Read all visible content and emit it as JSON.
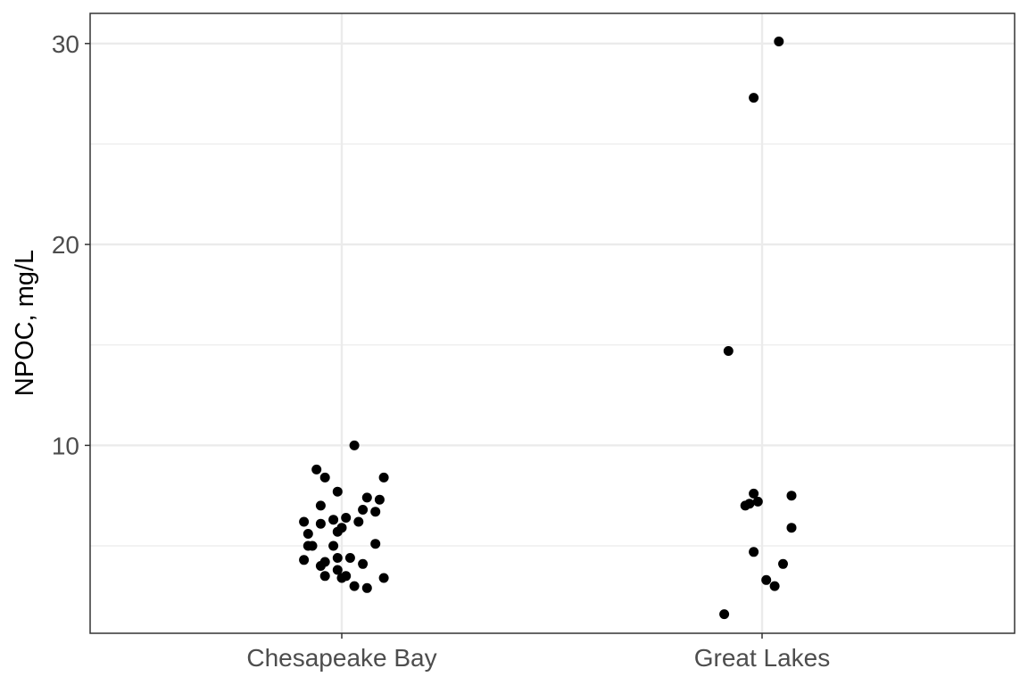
{
  "chart_data": {
    "type": "scatter",
    "title": "",
    "xlabel": "",
    "ylabel": "NPOC, mg/L",
    "categories": [
      "Chesapeake Bay",
      "Great Lakes"
    ],
    "ylim": [
      0.65,
      31.5
    ],
    "y_major_ticks": [
      10,
      20,
      30
    ],
    "y_minor_ticks": [
      5,
      15,
      25
    ],
    "grid": true,
    "legend": "none",
    "colors": {
      "point": "#000000",
      "grid": "#ebebeb",
      "border": "#333333"
    },
    "points": [
      {
        "category": "Chesapeake Bay",
        "jitter": 0.03,
        "y": 10.0
      },
      {
        "category": "Chesapeake Bay",
        "jitter": -0.06,
        "y": 8.8
      },
      {
        "category": "Chesapeake Bay",
        "jitter": -0.04,
        "y": 8.4
      },
      {
        "category": "Chesapeake Bay",
        "jitter": 0.1,
        "y": 8.4
      },
      {
        "category": "Chesapeake Bay",
        "jitter": -0.01,
        "y": 7.7
      },
      {
        "category": "Chesapeake Bay",
        "jitter": 0.06,
        "y": 7.4
      },
      {
        "category": "Chesapeake Bay",
        "jitter": 0.09,
        "y": 7.3
      },
      {
        "category": "Chesapeake Bay",
        "jitter": -0.05,
        "y": 7.0
      },
      {
        "category": "Chesapeake Bay",
        "jitter": 0.05,
        "y": 6.8
      },
      {
        "category": "Chesapeake Bay",
        "jitter": 0.08,
        "y": 6.7
      },
      {
        "category": "Chesapeake Bay",
        "jitter": 0.01,
        "y": 6.4
      },
      {
        "category": "Chesapeake Bay",
        "jitter": -0.02,
        "y": 6.3
      },
      {
        "category": "Chesapeake Bay",
        "jitter": -0.09,
        "y": 6.2
      },
      {
        "category": "Chesapeake Bay",
        "jitter": 0.04,
        "y": 6.2
      },
      {
        "category": "Chesapeake Bay",
        "jitter": -0.05,
        "y": 6.1
      },
      {
        "category": "Chesapeake Bay",
        "jitter": 0.0,
        "y": 5.9
      },
      {
        "category": "Chesapeake Bay",
        "jitter": -0.01,
        "y": 5.7
      },
      {
        "category": "Chesapeake Bay",
        "jitter": -0.08,
        "y": 5.6
      },
      {
        "category": "Chesapeake Bay",
        "jitter": -0.07,
        "y": 5.0
      },
      {
        "category": "Chesapeake Bay",
        "jitter": -0.08,
        "y": 5.0
      },
      {
        "category": "Chesapeake Bay",
        "jitter": -0.02,
        "y": 5.0
      },
      {
        "category": "Chesapeake Bay",
        "jitter": 0.08,
        "y": 5.1
      },
      {
        "category": "Chesapeake Bay",
        "jitter": -0.09,
        "y": 4.3
      },
      {
        "category": "Chesapeake Bay",
        "jitter": -0.01,
        "y": 4.4
      },
      {
        "category": "Chesapeake Bay",
        "jitter": 0.02,
        "y": 4.4
      },
      {
        "category": "Chesapeake Bay",
        "jitter": -0.04,
        "y": 4.2
      },
      {
        "category": "Chesapeake Bay",
        "jitter": -0.05,
        "y": 4.0
      },
      {
        "category": "Chesapeake Bay",
        "jitter": 0.05,
        "y": 4.1
      },
      {
        "category": "Chesapeake Bay",
        "jitter": -0.01,
        "y": 3.8
      },
      {
        "category": "Chesapeake Bay",
        "jitter": -0.04,
        "y": 3.5
      },
      {
        "category": "Chesapeake Bay",
        "jitter": -0.0,
        "y": 3.4
      },
      {
        "category": "Chesapeake Bay",
        "jitter": 0.01,
        "y": 3.5
      },
      {
        "category": "Chesapeake Bay",
        "jitter": 0.1,
        "y": 3.4
      },
      {
        "category": "Chesapeake Bay",
        "jitter": 0.03,
        "y": 3.0
      },
      {
        "category": "Chesapeake Bay",
        "jitter": 0.06,
        "y": 2.9
      },
      {
        "category": "Great Lakes",
        "jitter": 0.04,
        "y": 30.1
      },
      {
        "category": "Great Lakes",
        "jitter": -0.02,
        "y": 27.3
      },
      {
        "category": "Great Lakes",
        "jitter": -0.08,
        "y": 14.7
      },
      {
        "category": "Great Lakes",
        "jitter": -0.02,
        "y": 7.6
      },
      {
        "category": "Great Lakes",
        "jitter": 0.07,
        "y": 7.5
      },
      {
        "category": "Great Lakes",
        "jitter": -0.01,
        "y": 7.2
      },
      {
        "category": "Great Lakes",
        "jitter": -0.03,
        "y": 7.1
      },
      {
        "category": "Great Lakes",
        "jitter": -0.04,
        "y": 7.0
      },
      {
        "category": "Great Lakes",
        "jitter": 0.07,
        "y": 5.9
      },
      {
        "category": "Great Lakes",
        "jitter": -0.02,
        "y": 4.7
      },
      {
        "category": "Great Lakes",
        "jitter": 0.05,
        "y": 4.1
      },
      {
        "category": "Great Lakes",
        "jitter": 0.01,
        "y": 3.3
      },
      {
        "category": "Great Lakes",
        "jitter": 0.03,
        "y": 3.0
      },
      {
        "category": "Great Lakes",
        "jitter": -0.09,
        "y": 1.6
      }
    ]
  }
}
